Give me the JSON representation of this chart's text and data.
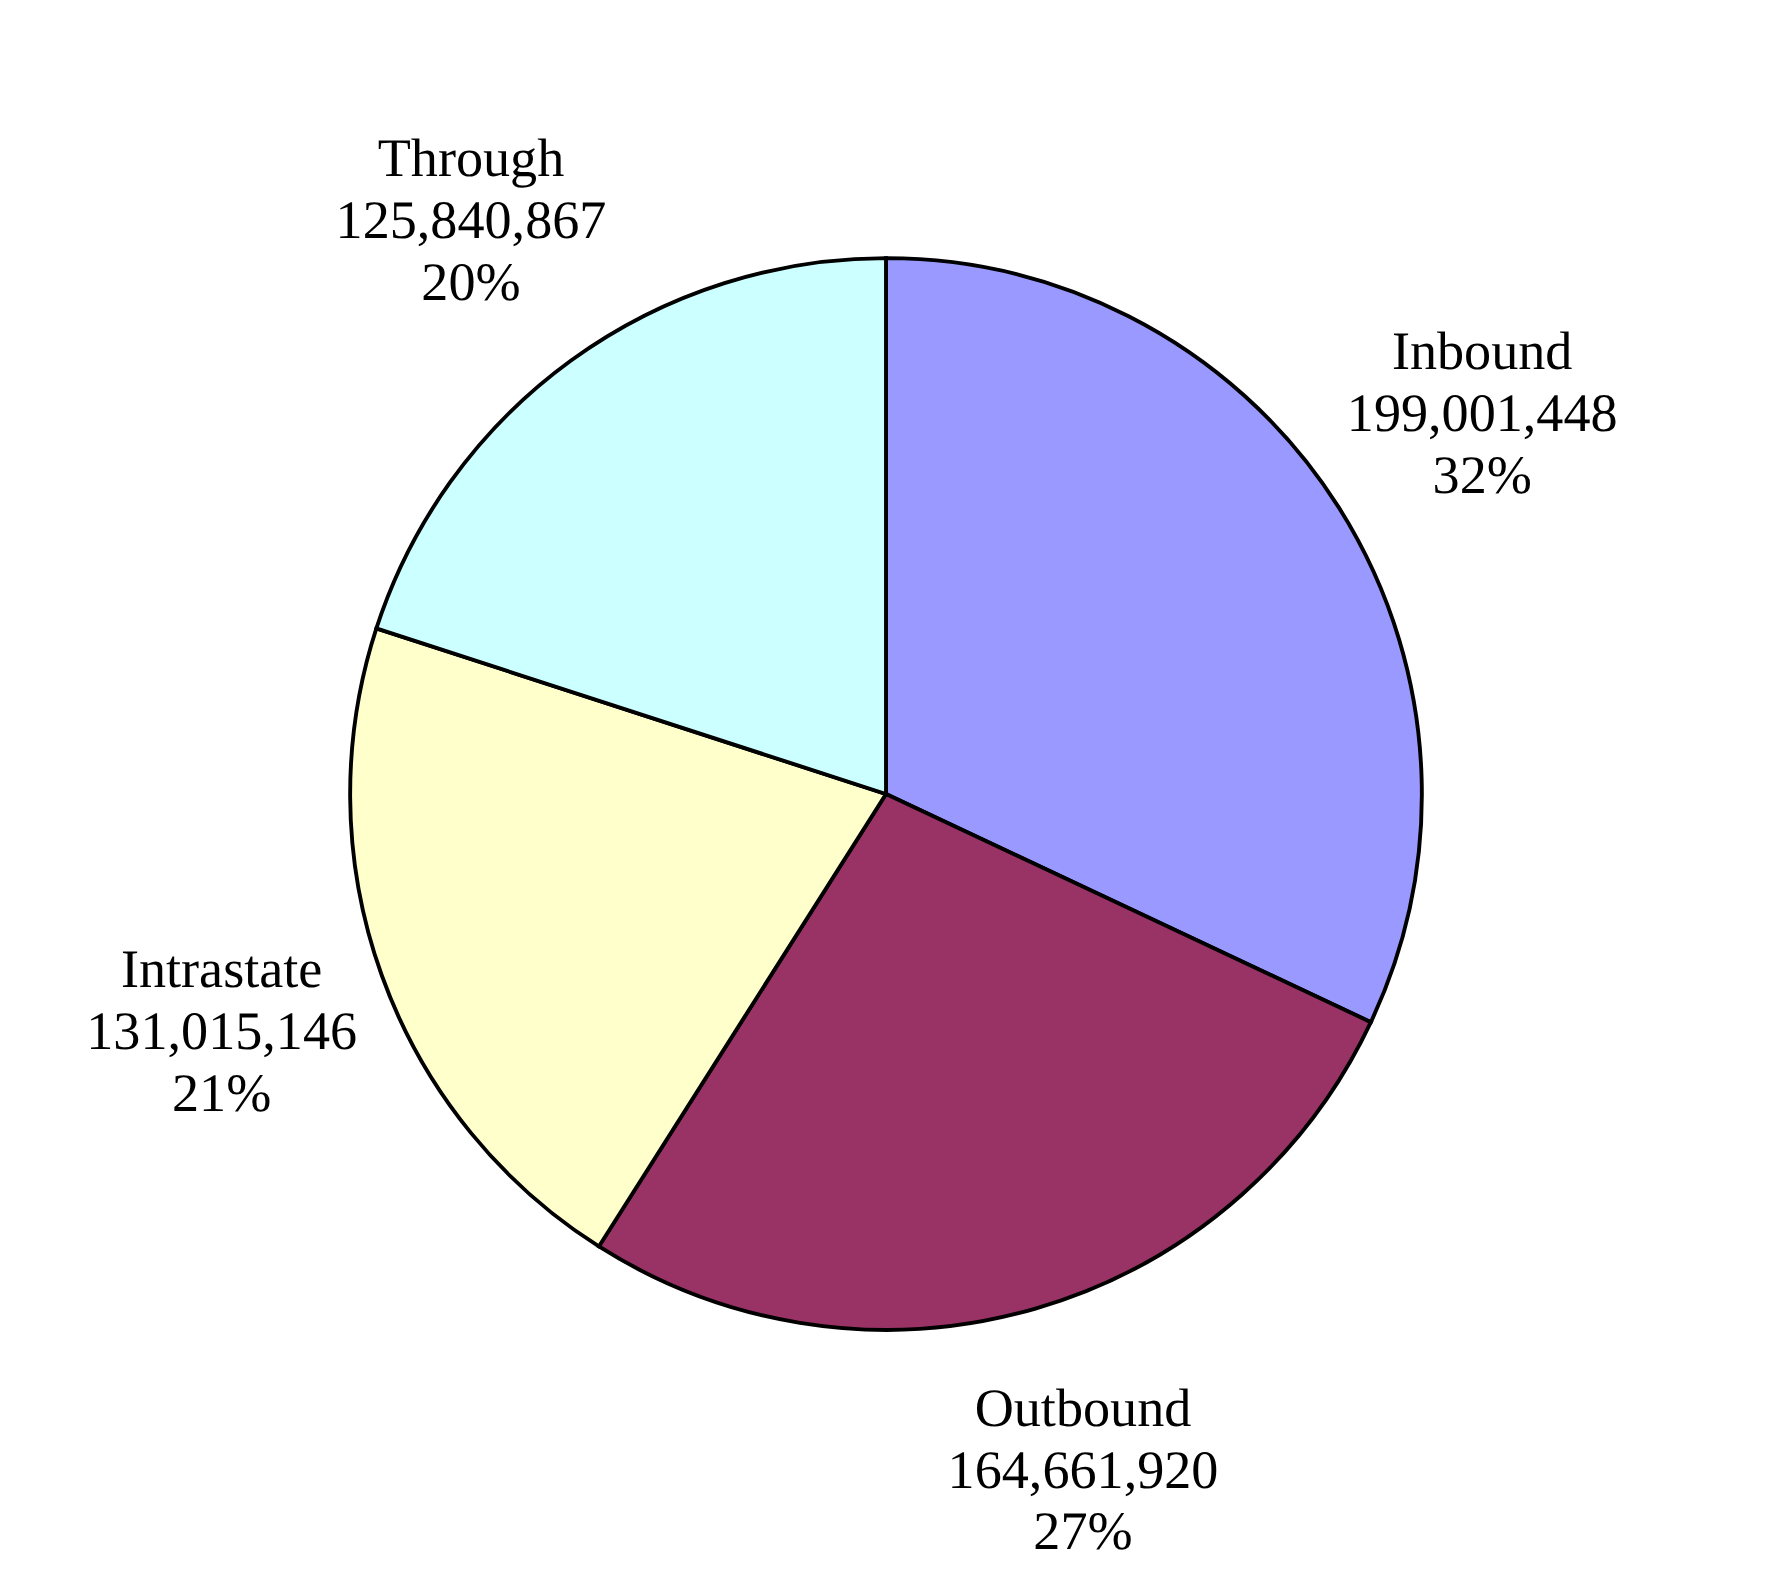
{
  "chart_data": {
    "type": "pie",
    "categories": [
      "Inbound",
      "Outbound",
      "Intrastate",
      "Through"
    ],
    "values": [
      32,
      27,
      21,
      20
    ],
    "colors": [
      "#9999ff",
      "#993366",
      "#ffffcc",
      "#ccffff"
    ],
    "value_labels": [
      "199,001,448\n32%",
      "164,661,920\n27%",
      "131,015,146\n21%",
      "125,840,867\n20%"
    ]
  }
}
